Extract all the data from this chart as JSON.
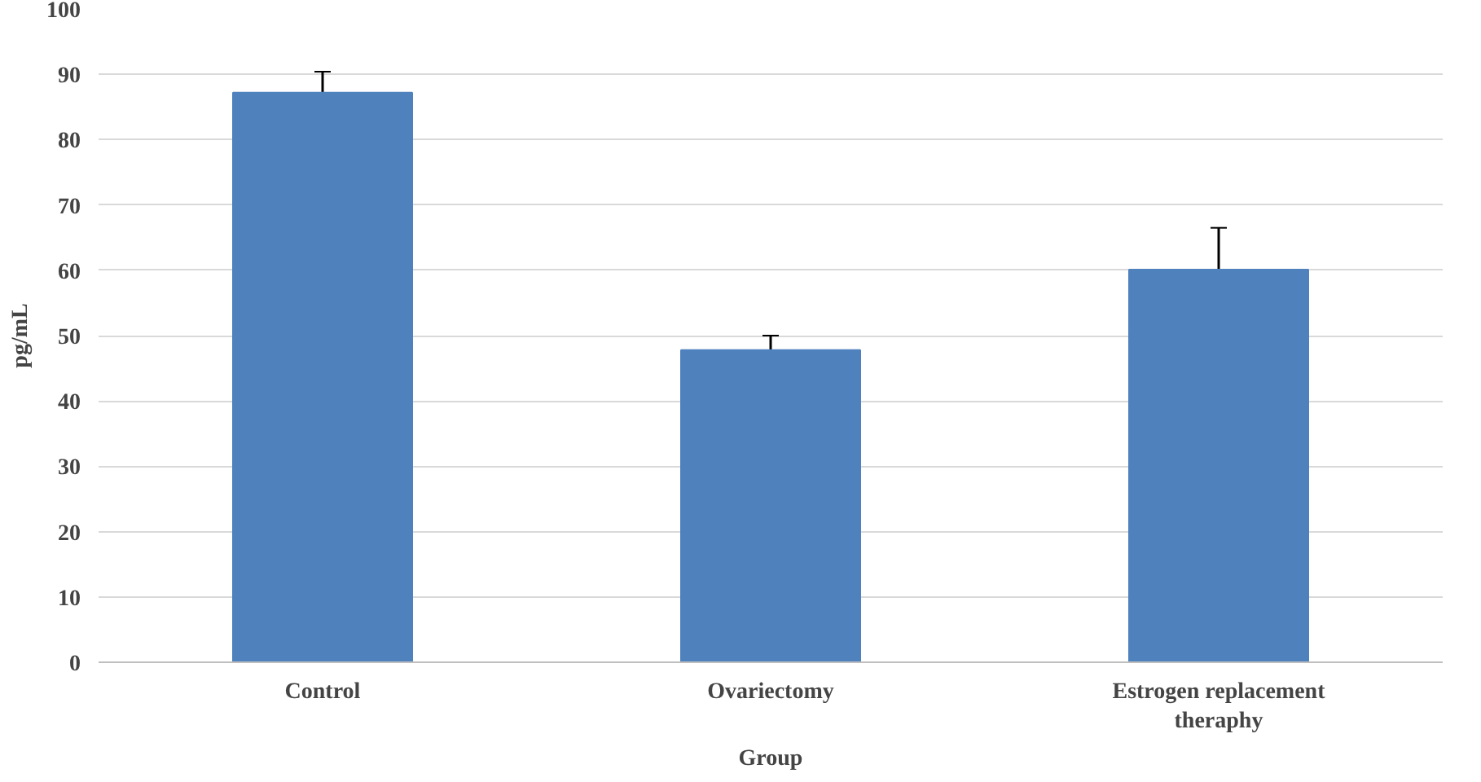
{
  "chart_data": {
    "type": "bar",
    "xlabel": "Group",
    "ylabel": "pg/mL",
    "categories": [
      "Control",
      "Ovariectomy",
      "Estrogen replacement theraphy"
    ],
    "values": [
      87.2,
      47.8,
      60.1
    ],
    "color": "#4f81bd",
    "errors": [
      [
        87.2,
        90.4
      ],
      [
        47.8,
        50.0
      ],
      [
        60.1,
        66.5
      ]
    ],
    "ylim": [
      0,
      100
    ],
    "yticks": [
      0,
      10,
      20,
      30,
      40,
      50,
      60,
      70,
      80,
      90,
      100
    ],
    "grid": "y"
  }
}
